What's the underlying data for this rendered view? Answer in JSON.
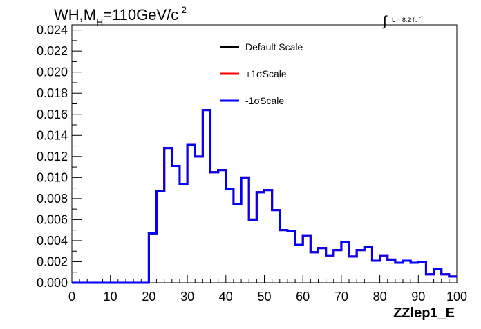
{
  "chart_data": {
    "type": "line",
    "title_main": "WH,M",
    "title_sub": "H",
    "title_value": "=110GeV/c",
    "title_sup": "2",
    "lumi_label": "L = 8.2 fb",
    "lumi_sup": "-1",
    "xlabel": "ZZlep1_E",
    "ylabel": "",
    "xlim": [
      0,
      100
    ],
    "ylim": [
      0,
      0.0245
    ],
    "xticks": [
      0,
      10,
      20,
      30,
      40,
      50,
      60,
      70,
      80,
      90,
      100
    ],
    "yticks": [
      0,
      0.002,
      0.004,
      0.006,
      0.008,
      0.01,
      0.012,
      0.014,
      0.016,
      0.018,
      0.02,
      0.022,
      0.024
    ],
    "ytick_labels": [
      "0.000",
      "0.002",
      "0.004",
      "0.006",
      "0.008",
      "0.010",
      "0.012",
      "0.014",
      "0.016",
      "0.018",
      "0.020",
      "0.022",
      "0.024"
    ],
    "grid": false,
    "legend_placement": "top-center",
    "bin_edges": [
      0,
      2,
      4,
      6,
      8,
      10,
      12,
      14,
      16,
      18,
      20,
      22,
      24,
      26,
      28,
      30,
      32,
      34,
      36,
      38,
      40,
      42,
      44,
      46,
      48,
      50,
      52,
      54,
      56,
      58,
      60,
      62,
      64,
      66,
      68,
      70,
      72,
      74,
      76,
      78,
      80,
      82,
      84,
      86,
      88,
      90,
      92,
      94,
      96,
      98,
      100
    ],
    "series": [
      {
        "name": "Default Scale",
        "color": "#000000",
        "values": [
          0,
          0,
          0,
          0,
          0,
          0,
          0,
          0,
          0,
          0,
          0.0047,
          0.0087,
          0.0128,
          0.0111,
          0.0094,
          0.0131,
          0.012,
          0.0164,
          0.0105,
          0.0107,
          0.0089,
          0.0075,
          0.01,
          0.006,
          0.0086,
          0.0088,
          0.0069,
          0.005,
          0.0049,
          0.0036,
          0.0045,
          0.0029,
          0.0033,
          0.0026,
          0.0031,
          0.0039,
          0.0025,
          0.0031,
          0.0034,
          0.0021,
          0.0026,
          0.0022,
          0.0019,
          0.0021,
          0.0019,
          0.002,
          0.0008,
          0.0013,
          0.0008,
          0.0006
        ]
      },
      {
        "name": "+1σScale",
        "color": "#ff0000",
        "values": [
          0,
          0,
          0,
          0,
          0,
          0,
          0,
          0,
          0,
          0,
          0.0047,
          0.0087,
          0.0128,
          0.0111,
          0.0094,
          0.0131,
          0.012,
          0.0164,
          0.0105,
          0.0107,
          0.0089,
          0.0075,
          0.01,
          0.006,
          0.0086,
          0.0088,
          0.0069,
          0.005,
          0.0049,
          0.0036,
          0.0045,
          0.0029,
          0.0033,
          0.0026,
          0.0031,
          0.0039,
          0.0025,
          0.0031,
          0.0034,
          0.0021,
          0.0026,
          0.0022,
          0.0019,
          0.0021,
          0.0019,
          0.002,
          0.0008,
          0.0013,
          0.0008,
          0.0006
        ]
      },
      {
        "name": "-1σScale",
        "color": "#0000ff",
        "values": [
          0,
          0,
          0,
          0,
          0,
          0,
          0,
          0,
          0,
          0,
          0.0047,
          0.0087,
          0.0128,
          0.0111,
          0.0094,
          0.0131,
          0.012,
          0.0164,
          0.0105,
          0.0107,
          0.0089,
          0.0075,
          0.01,
          0.006,
          0.0086,
          0.0088,
          0.0069,
          0.005,
          0.0049,
          0.0036,
          0.0045,
          0.0029,
          0.0033,
          0.0026,
          0.0031,
          0.0039,
          0.0025,
          0.0031,
          0.0034,
          0.0021,
          0.0026,
          0.0022,
          0.0019,
          0.0021,
          0.0019,
          0.002,
          0.0008,
          0.0013,
          0.0008,
          0.0006
        ]
      }
    ]
  }
}
